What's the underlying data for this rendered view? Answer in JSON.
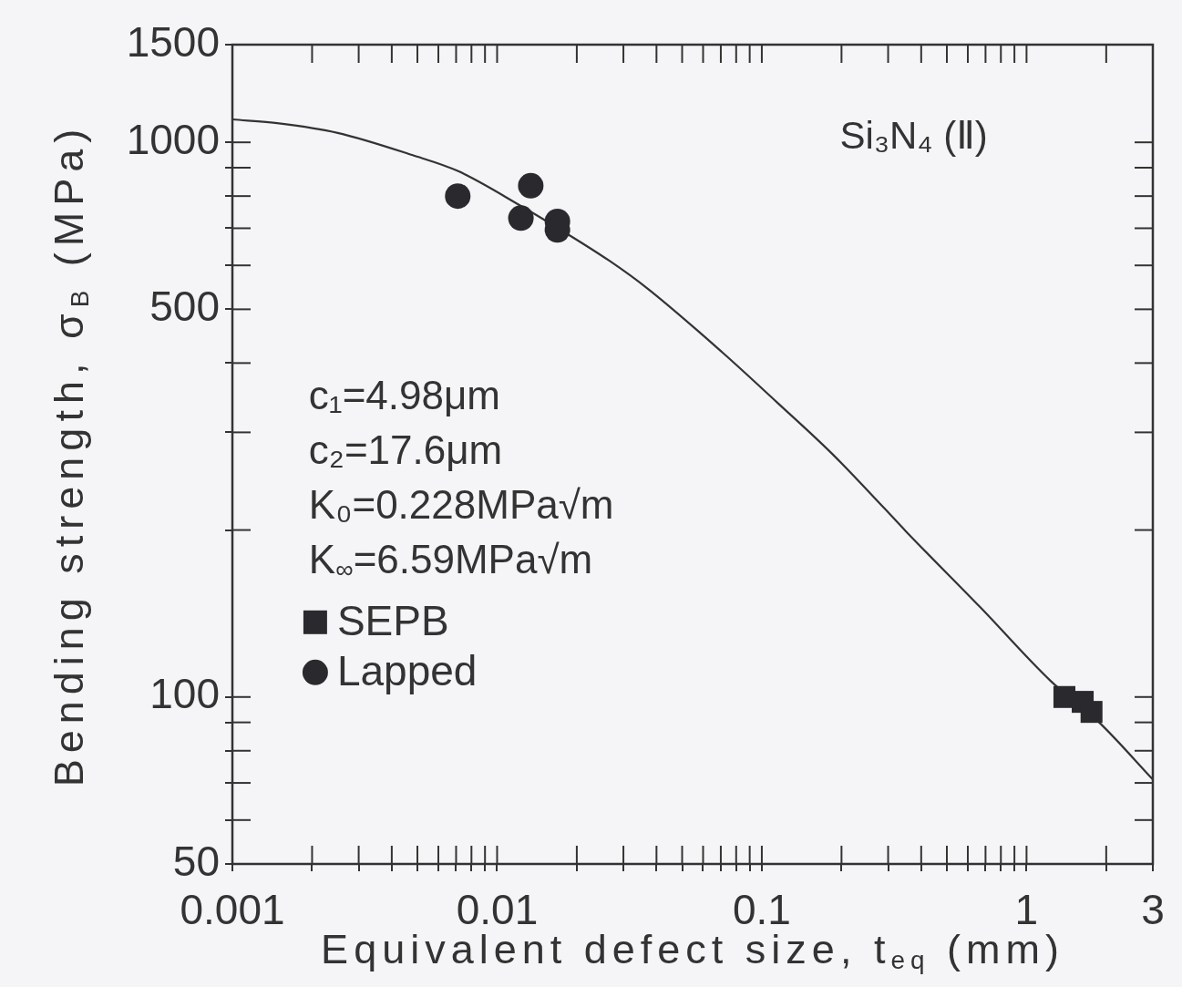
{
  "chart_data": {
    "type": "scatter",
    "xlabel": "Equivalent defect size, t$_{eq}$ (mm)",
    "ylabel": "Bending strength, σ$_{B}$ (MPa)",
    "annotations": [
      "Si₃N₄ (Ⅱ)",
      "c₁=4.98μm",
      "c₂=17.6μm",
      "K₀=0.228MPa√m",
      "K$_{∞}$=6.59MPa√m"
    ],
    "log": "xy",
    "xlim": [
      0.001,
      3
    ],
    "ylim": [
      50,
      1500
    ],
    "xticks": [
      0.001,
      {
        "value": 0.002,
        "label": null
      },
      {
        "value": 0.003,
        "label": null
      },
      {
        "value": 0.004,
        "label": null
      },
      {
        "value": 0.005,
        "label": null
      },
      {
        "value": 0.006,
        "label": null
      },
      {
        "value": 0.007,
        "label": null
      },
      {
        "value": 0.008,
        "label": null
      },
      {
        "value": 0.009,
        "label": null
      },
      0.01,
      {
        "value": 0.02,
        "label": null
      },
      {
        "value": 0.03,
        "label": null
      },
      {
        "value": 0.04,
        "label": null
      },
      {
        "value": 0.05,
        "label": null
      },
      {
        "value": 0.06,
        "label": null
      },
      {
        "value": 0.07,
        "label": null
      },
      {
        "value": 0.08,
        "label": null
      },
      {
        "value": 0.09,
        "label": null
      },
      0.1,
      {
        "value": 0.2,
        "label": null
      },
      {
        "value": 0.3,
        "label": null
      },
      {
        "value": 0.4,
        "label": null
      },
      {
        "value": 0.5,
        "label": null
      },
      {
        "value": 0.6,
        "label": null
      },
      {
        "value": 0.7,
        "label": null
      },
      {
        "value": 0.8,
        "label": null
      },
      {
        "value": 0.9,
        "label": null
      },
      1,
      {
        "value": 2,
        "label": null
      },
      3
    ],
    "yticks": [
      50,
      {
        "value": 60,
        "label": null
      },
      {
        "value": 70,
        "label": null
      },
      {
        "value": 80,
        "label": null
      },
      {
        "value": 90,
        "label": null
      },
      100,
      {
        "value": 200,
        "label": null
      },
      {
        "value": 300,
        "label": null
      },
      {
        "value": 400,
        "label": null
      },
      500,
      {
        "value": 600,
        "label": null
      },
      {
        "value": 700,
        "label": null
      },
      {
        "value": 800,
        "label": null
      },
      {
        "value": 900,
        "label": null
      },
      1000,
      1500
    ],
    "legend": "left",
    "series": [
      {
        "name": "SEPB",
        "marker": "square",
        "color": "#2a2a2e",
        "x": [
          1.39,
          1.63,
          1.76
        ],
        "values": [
          100,
          98,
          94
        ]
      },
      {
        "name": "Lapped",
        "marker": "circle",
        "color": "#2a2a2e",
        "x": [
          0.0071,
          0.0134,
          0.0123,
          0.0169,
          0.0169
        ],
        "values": [
          800,
          835,
          730,
          720,
          695
        ]
      },
      {
        "type": "line",
        "marker": "none",
        "line_style": "solid",
        "color": "#333333",
        "x": [
          0.001,
          0.0015,
          0.0025,
          0.0048,
          0.0071,
          0.0123,
          0.017,
          0.0265,
          0.037,
          0.071,
          0.114,
          0.185,
          0.29,
          0.35,
          0.67,
          1.23,
          1.88,
          3
        ],
        "values": [
          1100,
          1082,
          1040,
          948,
          888,
          768,
          700,
          612,
          545,
          418,
          340,
          274,
          219,
          199,
          145,
          107,
          90,
          71
        ]
      }
    ]
  }
}
